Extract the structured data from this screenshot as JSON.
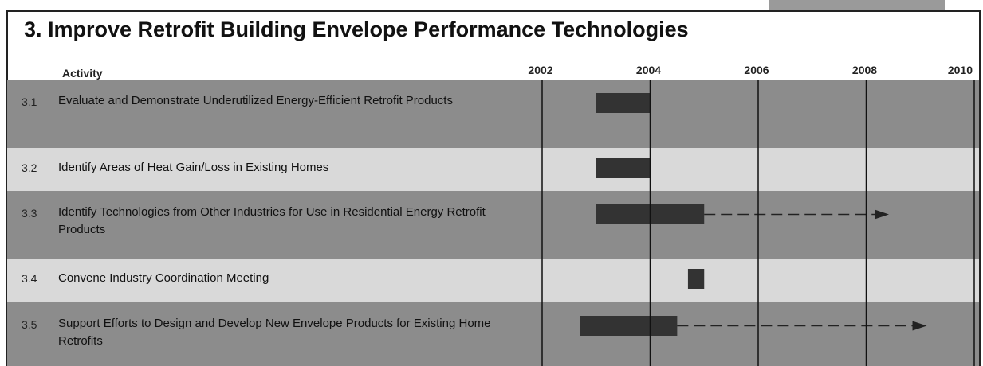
{
  "chart_data": {
    "type": "gantt",
    "title": "3. Improve Retrofit Building Envelope Performance Technologies",
    "header": "Activity",
    "xlim": [
      2002,
      2010
    ],
    "xticks": [
      2002,
      2004,
      2006,
      2008,
      2010
    ],
    "grid": true,
    "color": "#333333",
    "tasks": [
      {
        "id": "3.1",
        "label": "Evaluate and Demonstrate Underutilized Energy-Efficient Retrofit Products",
        "start": 2003.0,
        "end": 2004.0
      },
      {
        "id": "3.2",
        "label": "Identify Areas of Heat Gain/Loss in Existing Homes",
        "start": 2003.0,
        "end": 2004.0
      },
      {
        "id": "3.3",
        "label": "Identify Technologies from Other Industries for Use in Residential Energy Retrofit Products",
        "start": 2003.0,
        "end": 2005.0,
        "arrow_end": 2008.4
      },
      {
        "id": "3.4",
        "label": "Convene Industry Coordination Meeting",
        "start": 2004.7,
        "end": 2005.0
      },
      {
        "id": "3.5",
        "label": "Support Efforts to Design and Develop New Envelope Products for Existing Home Retrofits",
        "start": 2002.7,
        "end": 2004.5,
        "arrow_end": 2009.1
      }
    ]
  }
}
